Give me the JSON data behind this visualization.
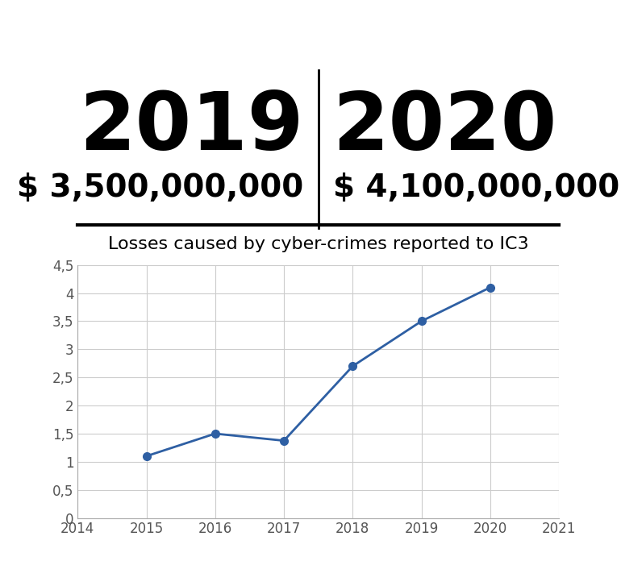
{
  "years": [
    2015,
    2016,
    2017,
    2018,
    2019,
    2020
  ],
  "values": [
    1.1,
    1.5,
    1.375,
    2.7,
    3.5,
    4.1
  ],
  "line_color": "#2e5fa3",
  "marker_color": "#2e5fa3",
  "chart_title": "Losses caused by cyber-crimes reported to IC3",
  "xlim": [
    2014,
    2021
  ],
  "ylim": [
    0,
    4.5
  ],
  "yticks": [
    0,
    0.5,
    1,
    1.5,
    2,
    2.5,
    3,
    3.5,
    4,
    4.5
  ],
  "ytick_labels": [
    "0",
    "0,5",
    "1",
    "1,5",
    "2",
    "2,5",
    "3",
    "3,5",
    "4",
    "4,5"
  ],
  "xticks": [
    2014,
    2015,
    2016,
    2017,
    2018,
    2019,
    2020,
    2021
  ],
  "header_year_left": "2019",
  "header_year_right": "2020",
  "header_value_left": "$ 3,500,000,000",
  "header_value_right": "$ 4,100,000,000",
  "header_year_fontsize": 72,
  "header_value_fontsize": 28,
  "chart_title_fontsize": 16,
  "axis_tick_fontsize": 12,
  "background_color": "#ffffff",
  "grid_color": "#cccccc",
  "divider_color": "#000000",
  "header_text_color": "#000000"
}
